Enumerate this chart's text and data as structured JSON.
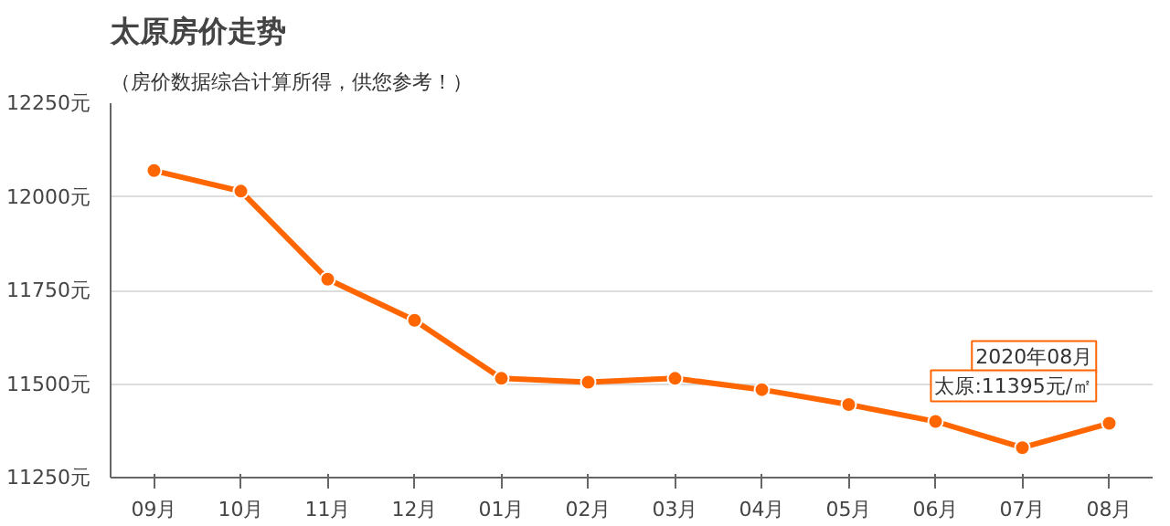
{
  "chart_data": {
    "type": "line",
    "title": "太原房价走势",
    "subtitle": "（房价数据综合计算所得，供您参考！）",
    "categories": [
      "09月",
      "10月",
      "11月",
      "12月",
      "01月",
      "02月",
      "03月",
      "04月",
      "05月",
      "06月",
      "07月",
      "08月"
    ],
    "series": [
      {
        "color": "#ff6600",
        "values": [
          12070,
          12015,
          11780,
          11670,
          11515,
          11505,
          11515,
          11485,
          11445,
          11400,
          11330,
          11395
        ]
      }
    ],
    "ylim": [
      11250,
      12250
    ],
    "yticks": [
      {
        "value": 11250,
        "label": "11250元"
      },
      {
        "value": 11500,
        "label": "11500元"
      },
      {
        "value": 11750,
        "label": "11750元"
      },
      {
        "value": 12000,
        "label": "12000元"
      },
      {
        "value": 12250,
        "label": "12250元"
      }
    ],
    "annotations": [
      {
        "text": "2020年08月",
        "x": "08月",
        "y": 11395
      },
      {
        "text": "太原:11395元/㎡",
        "x": "08月",
        "y": 11395
      }
    ],
    "grid": "y",
    "marker": "circle",
    "line_style": "solid"
  }
}
